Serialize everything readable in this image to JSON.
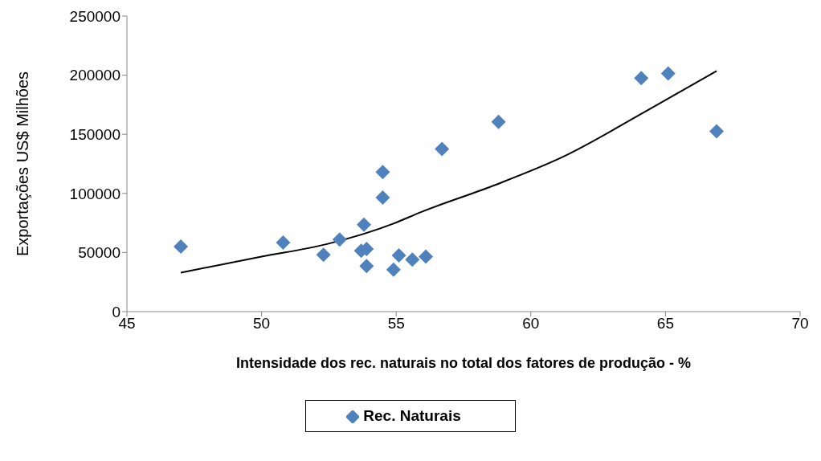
{
  "chart_data": {
    "type": "scatter",
    "xlabel": "Intensidade dos rec. naturais no total dos fatores de produção - %",
    "ylabel": "Exportações US$ Milhões",
    "xlim": [
      45,
      70
    ],
    "xticks": [
      45,
      50,
      55,
      60,
      65,
      70
    ],
    "ylim": [
      0,
      250000
    ],
    "yticks": [
      0,
      50000,
      100000,
      150000,
      200000,
      250000
    ],
    "grid": false,
    "legend": "bottom",
    "marker": "diamond",
    "series": [
      {
        "name": "Rec. Naturais",
        "color": "#4f81bd",
        "x": [
          47.0,
          50.8,
          52.3,
          52.9,
          53.8,
          53.7,
          53.9,
          53.9,
          54.5,
          54.5,
          55.1,
          54.9,
          55.6,
          56.1,
          56.7,
          58.8,
          64.1,
          65.1,
          66.9
        ],
        "values": [
          55000,
          58500,
          48000,
          61000,
          73500,
          51500,
          53000,
          38500,
          96500,
          118000,
          47500,
          35500,
          44000,
          46500,
          137500,
          160500,
          197500,
          201500,
          152500
        ]
      },
      {
        "type": "line",
        "color": "#000000",
        "marker": "none",
        "x": [
          47.0,
          50.0,
          52.4,
          54.9,
          55.9,
          58.6,
          61.2,
          64.2,
          66.9
        ],
        "values": [
          33000,
          46500,
          57000,
          74500,
          84000,
          106500,
          131000,
          168500,
          203500
        ]
      }
    ]
  }
}
